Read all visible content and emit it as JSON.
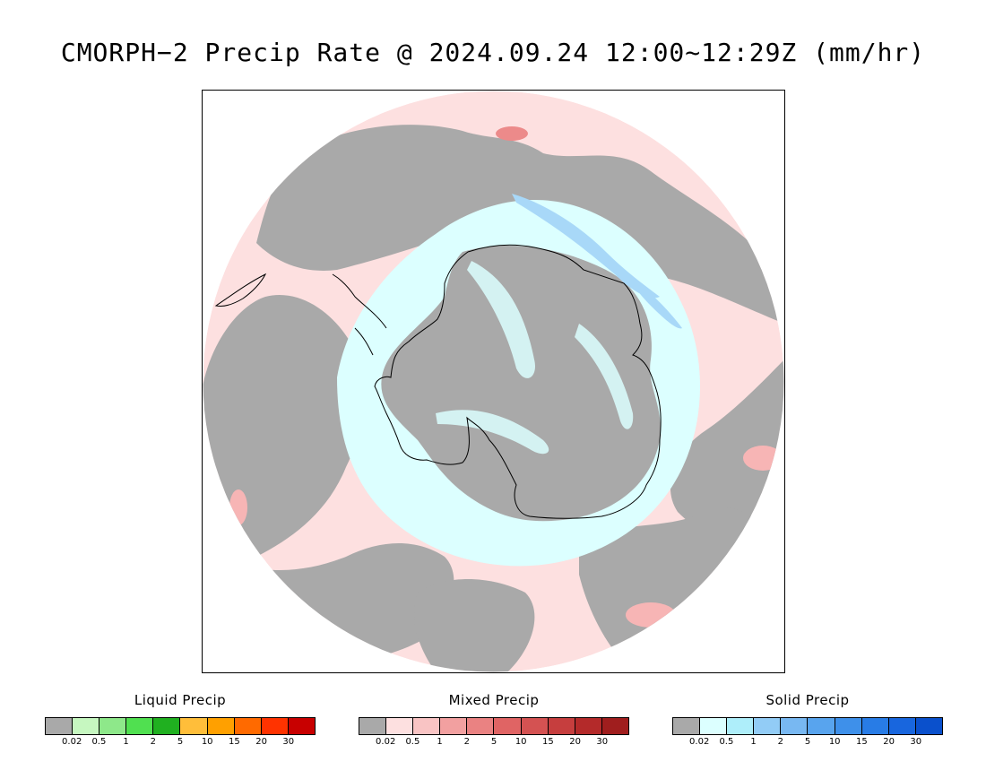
{
  "title": "CMORPH−2 Precip Rate @ 2024.09.24 12:00~12:29Z (mm/hr)",
  "map": {
    "projection": "south-polar-stereographic",
    "colors": {
      "no_precip": "#a9a9a9",
      "mixed_light": "#fde0e0",
      "mixed_moderate": "#f7b5b5",
      "mixed_heavy": "#ec8a8a",
      "solid_light": "#dcffff",
      "solid_moderate": "#a8d8f8",
      "solid_heavy": "#78b8f0",
      "coastline": "#000000"
    }
  },
  "legends": [
    {
      "name": "liquid",
      "title": "Liquid Precip",
      "colors": [
        "#a9a9a9",
        "#c6f7c0",
        "#8ee88a",
        "#50e050",
        "#20b020",
        "#ffbe3a",
        "#ffa000",
        "#ff6a00",
        "#ff3300",
        "#c80000"
      ],
      "ticks": [
        "0.02",
        "0.5",
        "1",
        "2",
        "5",
        "10",
        "15",
        "20",
        "30"
      ]
    },
    {
      "name": "mixed",
      "title": "Mixed Precip",
      "colors": [
        "#a9a9a9",
        "#fde0e0",
        "#f9c4c4",
        "#f2a0a0",
        "#ea8282",
        "#e06464",
        "#d45252",
        "#c63e3e",
        "#b42a2a",
        "#a01e1e"
      ],
      "ticks": [
        "0.02",
        "0.5",
        "1",
        "2",
        "5",
        "10",
        "15",
        "20",
        "30"
      ]
    },
    {
      "name": "solid",
      "title": "Solid Precip",
      "colors": [
        "#a9a9a9",
        "#dcffff",
        "#aeeefa",
        "#92ccf6",
        "#78b8f2",
        "#58a4ee",
        "#3e90ea",
        "#287ce6",
        "#1866de",
        "#0a50cc"
      ],
      "ticks": [
        "0.02",
        "0.5",
        "1",
        "2",
        "5",
        "10",
        "15",
        "20",
        "30"
      ]
    }
  ]
}
